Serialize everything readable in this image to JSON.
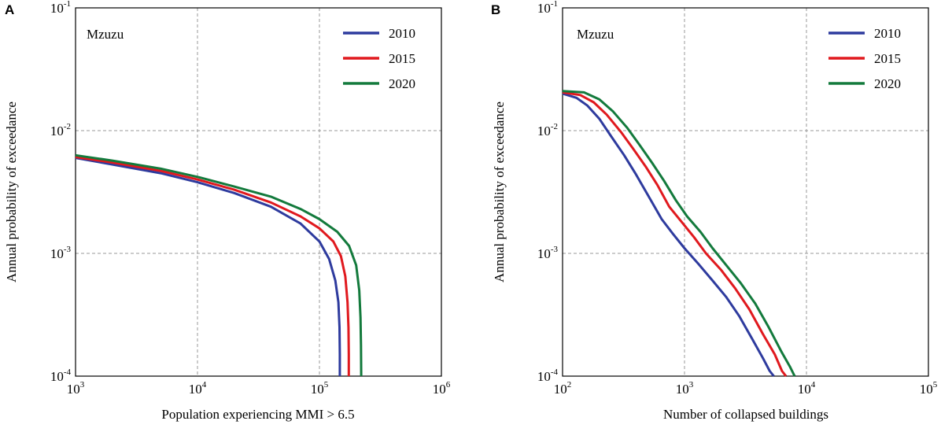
{
  "chart_data": [
    {
      "panel": "A",
      "type": "line",
      "location_label": "Mzuzu",
      "xlabel": "Population experiencing MMI > 6.5",
      "ylabel": "Annual probability of exceedance",
      "xscale": "log",
      "yscale": "log",
      "xlim": [
        1000,
        1000000
      ],
      "ylim": [
        0.0001,
        0.1
      ],
      "x_ticks": [
        {
          "base": "10",
          "exp": "3",
          "value": 1000
        },
        {
          "base": "10",
          "exp": "4",
          "value": 10000
        },
        {
          "base": "10",
          "exp": "5",
          "value": 100000
        },
        {
          "base": "10",
          "exp": "6",
          "value": 1000000
        }
      ],
      "y_ticks": [
        {
          "base": "10",
          "exp": "-4",
          "value": 0.0001
        },
        {
          "base": "10",
          "exp": "-3",
          "value": 0.001
        },
        {
          "base": "10",
          "exp": "-2",
          "value": 0.01
        },
        {
          "base": "10",
          "exp": "-1",
          "value": 0.1
        }
      ],
      "grid": true,
      "legend_position": "top-right",
      "series": [
        {
          "name": "2010",
          "color": "#2e3b9e",
          "x": [
            1000,
            2000,
            5000,
            10000,
            20000,
            40000,
            70000,
            100000,
            120000,
            135000,
            143000,
            146000,
            147000,
            147000
          ],
          "y": [
            0.006,
            0.0053,
            0.0045,
            0.0038,
            0.0031,
            0.0024,
            0.00175,
            0.00125,
            0.0009,
            0.0006,
            0.0004,
            0.00025,
            0.00015,
            0.0001
          ]
        },
        {
          "name": "2015",
          "color": "#e0191e",
          "x": [
            1000,
            2000,
            5000,
            10000,
            20000,
            40000,
            70000,
            100000,
            130000,
            150000,
            163000,
            170000,
            173000,
            174000,
            174000
          ],
          "y": [
            0.0061,
            0.0055,
            0.0047,
            0.004,
            0.0033,
            0.0026,
            0.002,
            0.0016,
            0.00125,
            0.00095,
            0.00065,
            0.0004,
            0.00025,
            0.00015,
            0.0001
          ]
        },
        {
          "name": "2020",
          "color": "#137a3c",
          "x": [
            1000,
            2000,
            5000,
            10000,
            20000,
            40000,
            70000,
            100000,
            140000,
            175000,
            200000,
            212000,
            217000,
            219000,
            220000
          ],
          "y": [
            0.0063,
            0.0057,
            0.0049,
            0.0042,
            0.0035,
            0.0029,
            0.0023,
            0.0019,
            0.0015,
            0.00115,
            0.0008,
            0.0005,
            0.0003,
            0.00018,
            0.0001
          ]
        }
      ]
    },
    {
      "panel": "B",
      "type": "line",
      "location_label": "Mzuzu",
      "xlabel": "Number of collapsed buildings",
      "ylabel": "Annual probability of exceedance",
      "xscale": "log",
      "yscale": "log",
      "xlim": [
        100,
        100000
      ],
      "ylim": [
        0.0001,
        0.1
      ],
      "x_ticks": [
        {
          "base": "10",
          "exp": "2",
          "value": 100
        },
        {
          "base": "10",
          "exp": "3",
          "value": 1000
        },
        {
          "base": "10",
          "exp": "4",
          "value": 10000
        },
        {
          "base": "10",
          "exp": "5",
          "value": 100000
        }
      ],
      "y_ticks": [
        {
          "base": "10",
          "exp": "-4",
          "value": 0.0001
        },
        {
          "base": "10",
          "exp": "-3",
          "value": 0.001
        },
        {
          "base": "10",
          "exp": "-2",
          "value": 0.01
        },
        {
          "base": "10",
          "exp": "-1",
          "value": 0.1
        }
      ],
      "grid": true,
      "legend_position": "top-right",
      "series": [
        {
          "name": "2010",
          "color": "#2e3b9e",
          "x": [
            100,
            130,
            160,
            200,
            250,
            320,
            400,
            500,
            650,
            800,
            1000,
            1300,
            1700,
            2200,
            2800,
            3600,
            4400,
            5000,
            5400
          ],
          "y": [
            0.02,
            0.0185,
            0.016,
            0.0125,
            0.009,
            0.0063,
            0.0044,
            0.003,
            0.0019,
            0.00145,
            0.0011,
            0.00082,
            0.0006,
            0.00044,
            0.00031,
            0.0002,
            0.00014,
            0.00011,
            0.0001
          ]
        },
        {
          "name": "2015",
          "color": "#e0191e",
          "x": [
            100,
            140,
            180,
            230,
            300,
            380,
            480,
            600,
            750,
            950,
            1200,
            1500,
            2000,
            2600,
            3400,
            4400,
            5500,
            6300,
            6800
          ],
          "y": [
            0.0205,
            0.0195,
            0.017,
            0.0135,
            0.0098,
            0.0071,
            0.0051,
            0.0036,
            0.0024,
            0.0018,
            0.00135,
            0.001,
            0.00073,
            0.00052,
            0.00035,
            0.00022,
            0.00015,
            0.00011,
            0.0001
          ]
        },
        {
          "name": "2020",
          "color": "#137a3c",
          "x": [
            100,
            150,
            200,
            260,
            340,
            430,
            540,
            680,
            850,
            1050,
            1350,
            1700,
            2200,
            2900,
            3800,
            4900,
            6200,
            7300,
            8000
          ],
          "y": [
            0.021,
            0.0205,
            0.018,
            0.0143,
            0.0105,
            0.0076,
            0.0055,
            0.0039,
            0.0027,
            0.002,
            0.0015,
            0.0011,
            0.0008,
            0.00057,
            0.00039,
            0.00025,
            0.00016,
            0.00012,
            0.0001
          ]
        }
      ]
    }
  ]
}
